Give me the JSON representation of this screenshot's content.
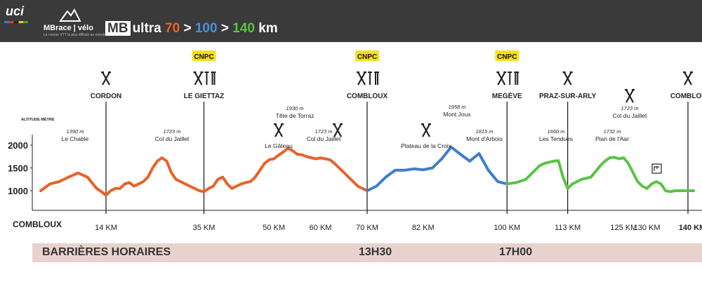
{
  "header": {
    "uci": "uci",
    "logo": "MBrace | vélo",
    "tagline": "La course VTT la plus difficile au monde",
    "title_box": "MB",
    "title_word": "ultra",
    "d1": "70",
    "d2": "100",
    "d3": "140",
    "sep": ">",
    "unit": "km",
    "colors": {
      "orange": "#e8622a",
      "blue": "#4a90d9",
      "green": "#5bc346"
    }
  },
  "chart_data": {
    "type": "line",
    "ylabel": "ALTITUDE MÈTRE",
    "yticks": [
      1000,
      1500,
      2000
    ],
    "ylim": [
      700,
      2300
    ],
    "xlim": [
      0,
      140
    ],
    "x_ticks": [
      "14 KM",
      "35 KM",
      "50 KM",
      "60 KM",
      "70 KM",
      "82 KM",
      "100 KM",
      "113 KM",
      "125 KM",
      "130 KM",
      "140 KM"
    ],
    "x_tick_values": [
      14,
      35,
      50,
      60,
      70,
      82,
      100,
      113,
      125,
      130,
      140
    ],
    "start_label": "COMBLOUX",
    "series": [
      {
        "color": "#e8622a",
        "x": [
          0,
          2,
          4,
          6,
          8,
          10,
          12,
          13,
          14,
          15,
          16,
          17,
          18,
          19,
          20,
          21,
          22,
          23,
          24,
          25,
          26,
          27,
          28,
          29,
          30,
          31,
          32,
          33,
          34,
          35,
          36,
          37,
          38,
          39,
          40,
          41,
          42,
          43,
          44,
          45,
          46,
          47,
          48,
          49,
          50,
          51,
          52,
          53,
          54,
          55,
          56,
          57,
          58,
          59,
          60,
          61,
          62,
          63,
          64,
          65,
          66,
          67,
          68,
          69,
          70
        ],
        "y": [
          1000,
          1150,
          1200,
          1300,
          1390,
          1300,
          1050,
          980,
          900,
          1000,
          1050,
          1050,
          1150,
          1180,
          1100,
          1150,
          1200,
          1300,
          1500,
          1650,
          1723,
          1650,
          1400,
          1250,
          1200,
          1150,
          1100,
          1050,
          1000,
          980,
          1050,
          1100,
          1250,
          1300,
          1150,
          1050,
          1100,
          1150,
          1180,
          1200,
          1300,
          1450,
          1600,
          1680,
          1700,
          1780,
          1850,
          1930,
          1880,
          1800,
          1790,
          1750,
          1723,
          1700,
          1720,
          1700,
          1680,
          1600,
          1500,
          1400,
          1300,
          1200,
          1100,
          1050,
          1000
        ]
      },
      {
        "color": "#3f7ec5",
        "x": [
          70,
          72,
          74,
          76,
          78,
          80,
          82,
          84,
          86,
          88,
          90,
          92,
          94,
          96,
          98,
          100
        ],
        "y": [
          1000,
          1100,
          1300,
          1450,
          1450,
          1480,
          1460,
          1500,
          1700,
          1958,
          1800,
          1650,
          1815,
          1450,
          1200,
          1150
        ]
      },
      {
        "color": "#5bc346",
        "x": [
          100,
          102,
          104,
          106,
          107,
          108,
          110,
          111,
          112,
          113,
          114,
          116,
          118,
          120,
          121,
          122,
          123,
          124,
          125,
          126,
          127,
          128,
          129,
          130,
          131,
          132,
          133,
          134,
          135,
          136,
          138,
          140
        ],
        "y": [
          1150,
          1180,
          1250,
          1450,
          1550,
          1600,
          1650,
          1660,
          1300,
          1050,
          1150,
          1250,
          1300,
          1550,
          1650,
          1723,
          1732,
          1700,
          1723,
          1600,
          1400,
          1200,
          1100,
          1050,
          1150,
          1200,
          1150,
          1000,
          980,
          1000,
          1000,
          1000
        ]
      }
    ]
  },
  "peaks": [
    {
      "alt": "1390 m",
      "name": "Le Chable"
    },
    {
      "alt": "1723 m",
      "name": "Col du Jaillet"
    },
    {
      "alt": "1930 m",
      "name": "Tête de Torraz"
    },
    {
      "name": "Le Gâteau"
    },
    {
      "alt": "1723 m",
      "name": "Col du Jaillet"
    },
    {
      "name": "Plateau de la Croix"
    },
    {
      "alt": "1958 m",
      "name": "Mont Joux"
    },
    {
      "alt": "1815 m",
      "name": "Mont d'Arbois"
    },
    {
      "alt": "1660 m",
      "name": "Les Tendues"
    },
    {
      "alt": "1732 m",
      "name": "Plan de l'Aar"
    },
    {
      "alt": "1723 m",
      "name": "Col du Jaillet"
    }
  ],
  "ravitos": [
    {
      "km": 14,
      "name": "CORDON",
      "cnpc": false,
      "tools": false
    },
    {
      "km": 35,
      "name": "LE GIETTAZ",
      "cnpc": true,
      "tools": true
    },
    {
      "km": 70,
      "name": "COMBLOUX",
      "cnpc": true,
      "tools": true
    },
    {
      "km": 100,
      "name": "MEGÈVE",
      "cnpc": true,
      "tools": true
    },
    {
      "km": 113,
      "name": "PRAZ-SUR-ARLY",
      "cnpc": false,
      "tools": false
    },
    {
      "km": 140,
      "name": "COMBLOUX",
      "cnpc": false,
      "tools": false
    }
  ],
  "cnpc_label": "CNPC",
  "barrier": {
    "label": "BARRIÈRES HORAIRES",
    "t1": "13H30",
    "t2": "17H00"
  }
}
